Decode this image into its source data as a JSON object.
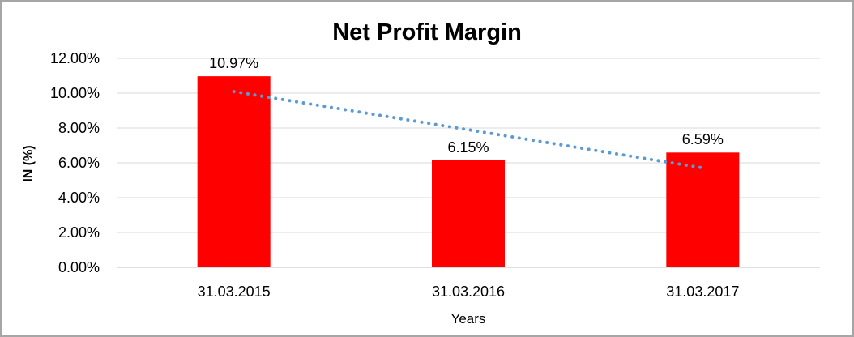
{
  "chart_data": {
    "type": "bar",
    "title": "Net Profit Margin",
    "xlabel": "Years",
    "ylabel": "IN (%)",
    "categories": [
      "31.03.2015",
      "31.03.2016",
      "31.03.2017"
    ],
    "values": [
      10.97,
      6.15,
      6.59
    ],
    "data_labels": [
      "10.97%",
      "6.15%",
      "6.59%"
    ],
    "ylim": [
      0,
      12
    ],
    "ytick_labels": [
      "0.00%",
      "2.00%",
      "4.00%",
      "6.00%",
      "8.00%",
      "10.00%",
      "12.00%"
    ],
    "ytick_values": [
      0,
      2,
      4,
      6,
      8,
      10,
      12
    ],
    "grid": true,
    "legend": "none",
    "bar_color": "#ff0000",
    "gridline_color": "#d9d9d9",
    "axis_line_color": "#bfbfbf",
    "trendline": {
      "type": "linear",
      "color": "#5b9bd5",
      "style": "dotted",
      "start_value": 10.09,
      "end_value": 5.71
    }
  }
}
